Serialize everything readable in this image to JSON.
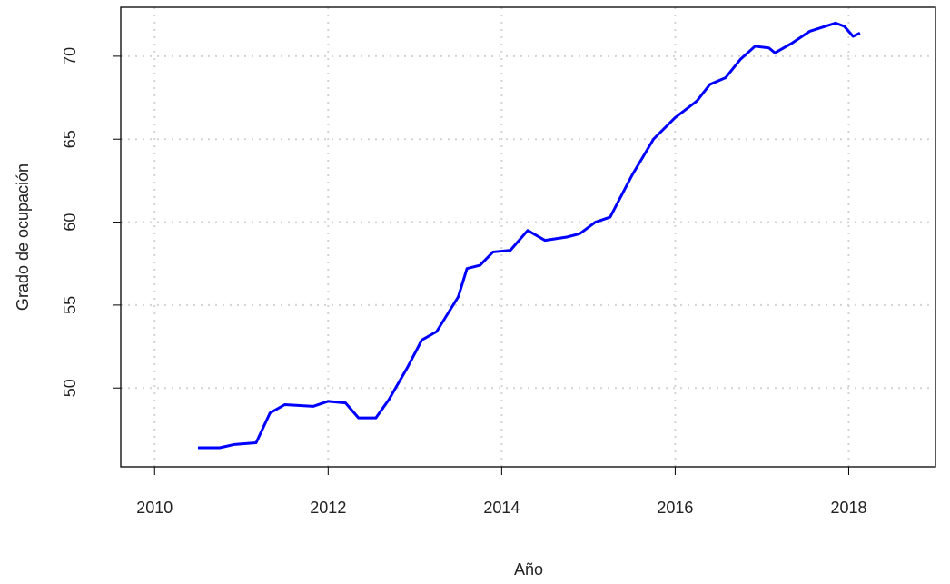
{
  "chart_data": {
    "type": "line",
    "x_label": "Año",
    "y_label": "Grado de ocupación",
    "x": [
      2010.5,
      2010.75,
      2010.92,
      2011.17,
      2011.33,
      2011.5,
      2011.83,
      2012.0,
      2012.2,
      2012.35,
      2012.55,
      2012.7,
      2012.92,
      2013.08,
      2013.25,
      2013.5,
      2013.6,
      2013.75,
      2013.9,
      2014.1,
      2014.3,
      2014.5,
      2014.75,
      2014.9,
      2015.08,
      2015.25,
      2015.5,
      2015.75,
      2016.0,
      2016.25,
      2016.4,
      2016.58,
      2016.75,
      2016.92,
      2017.08,
      2017.15,
      2017.35,
      2017.55,
      2017.85,
      2017.95,
      2018.05,
      2018.13
    ],
    "series": [
      {
        "color": "#0000ff",
        "values": [
          46.4,
          46.4,
          46.6,
          46.7,
          48.5,
          49.0,
          48.9,
          49.2,
          49.1,
          48.2,
          48.2,
          49.3,
          51.3,
          52.9,
          53.4,
          55.5,
          57.2,
          57.4,
          58.2,
          58.3,
          59.5,
          58.9,
          59.1,
          59.3,
          60.0,
          60.3,
          62.8,
          65.0,
          66.3,
          67.3,
          68.3,
          68.7,
          69.8,
          70.6,
          70.5,
          70.2,
          70.8,
          71.5,
          72.0,
          71.8,
          71.2,
          71.4
        ]
      }
    ],
    "xlim": [
      2009.61,
      2019.0
    ],
    "xticks": [
      2010,
      2012,
      2014,
      2016,
      2018
    ],
    "ylim": [
      45.25,
      72.95
    ],
    "yticks": [
      50,
      55,
      60,
      65,
      70
    ],
    "grid": true
  }
}
